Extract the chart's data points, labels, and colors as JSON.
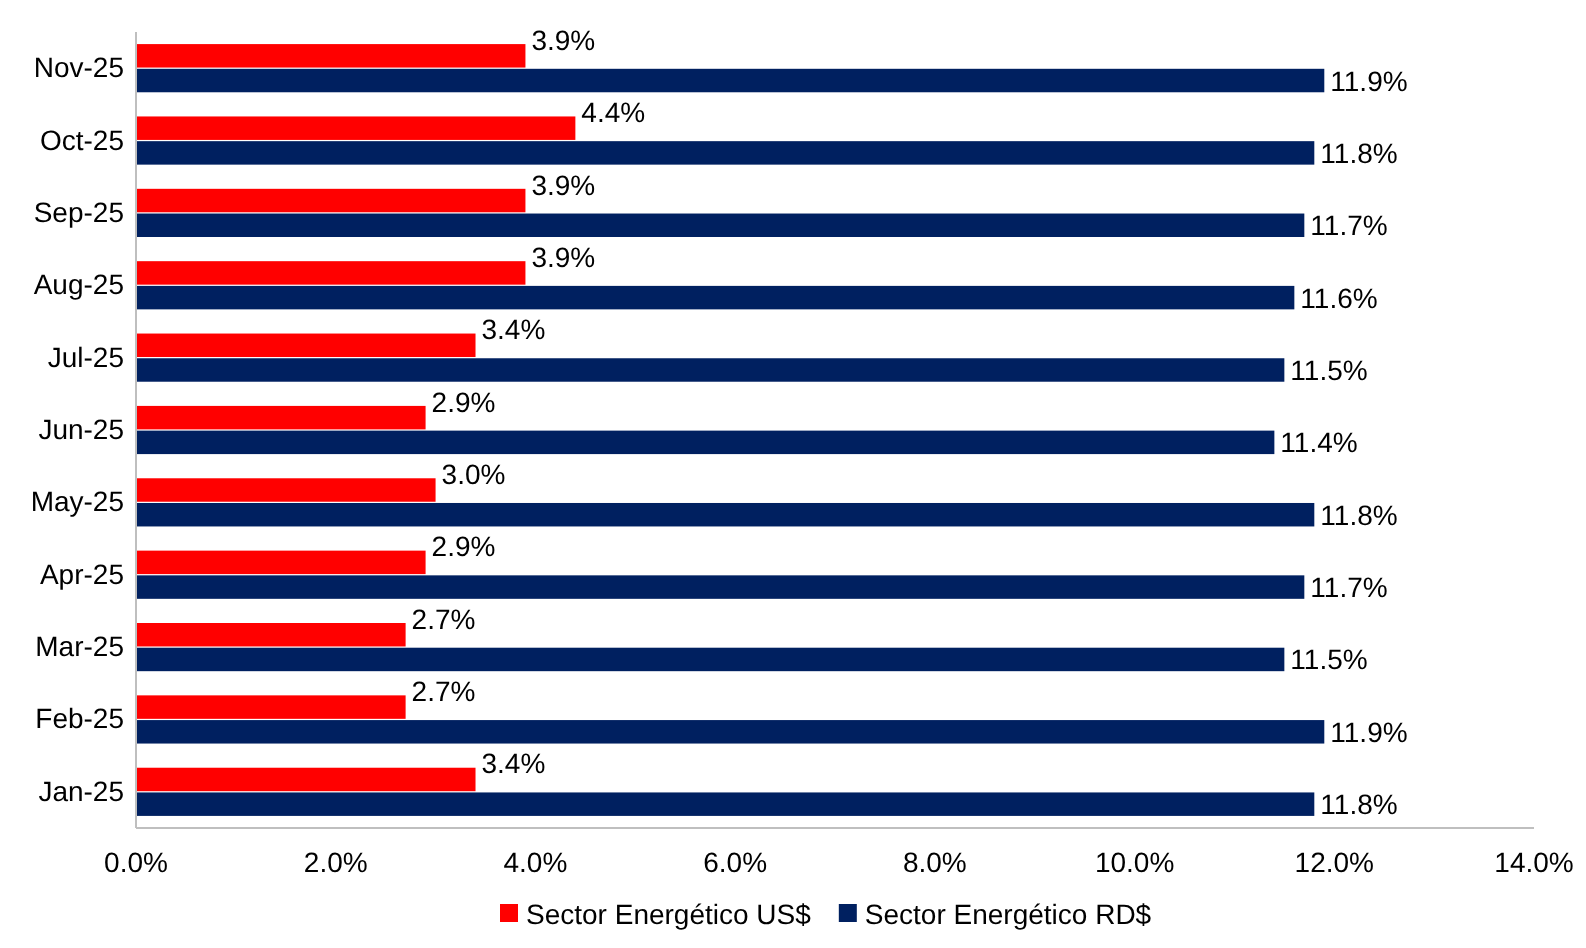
{
  "chart_data": {
    "type": "bar",
    "orientation": "horizontal",
    "categories": [
      "Nov-25",
      "Oct-25",
      "Sep-25",
      "Aug-25",
      "Jul-25",
      "Jun-25",
      "May-25",
      "Apr-25",
      "Mar-25",
      "Feb-25",
      "Jan-25"
    ],
    "series": [
      {
        "name": "Sector Energético US$",
        "color": "#ff0000",
        "values": [
          3.9,
          4.4,
          3.9,
          3.9,
          3.4,
          2.9,
          3.0,
          2.9,
          2.7,
          2.7,
          3.4
        ],
        "value_labels": [
          "3.9%",
          "4.4%",
          "3.9%",
          "3.9%",
          "3.4%",
          "2.9%",
          "3.0%",
          "2.9%",
          "2.7%",
          "2.7%",
          "3.4%"
        ]
      },
      {
        "name": "Sector Energético RD$",
        "color": "#002060",
        "values": [
          11.9,
          11.8,
          11.7,
          11.6,
          11.5,
          11.4,
          11.8,
          11.7,
          11.5,
          11.9,
          11.8
        ],
        "value_labels": [
          "11.9%",
          "11.8%",
          "11.7%",
          "11.6%",
          "11.5%",
          "11.4%",
          "11.8%",
          "11.7%",
          "11.5%",
          "11.9%",
          "11.8%"
        ]
      }
    ],
    "xlim": [
      0,
      14
    ],
    "xticks": [
      {
        "value": 0,
        "label": "0.0%"
      },
      {
        "value": 2,
        "label": "2.0%"
      },
      {
        "value": 4,
        "label": "4.0%"
      },
      {
        "value": 6,
        "label": "6.0%"
      },
      {
        "value": 8,
        "label": "8.0%"
      },
      {
        "value": 10,
        "label": "10.0%"
      },
      {
        "value": 12,
        "label": "12.0%"
      },
      {
        "value": 14,
        "label": "14.0%"
      }
    ],
    "legend": "bottom"
  }
}
